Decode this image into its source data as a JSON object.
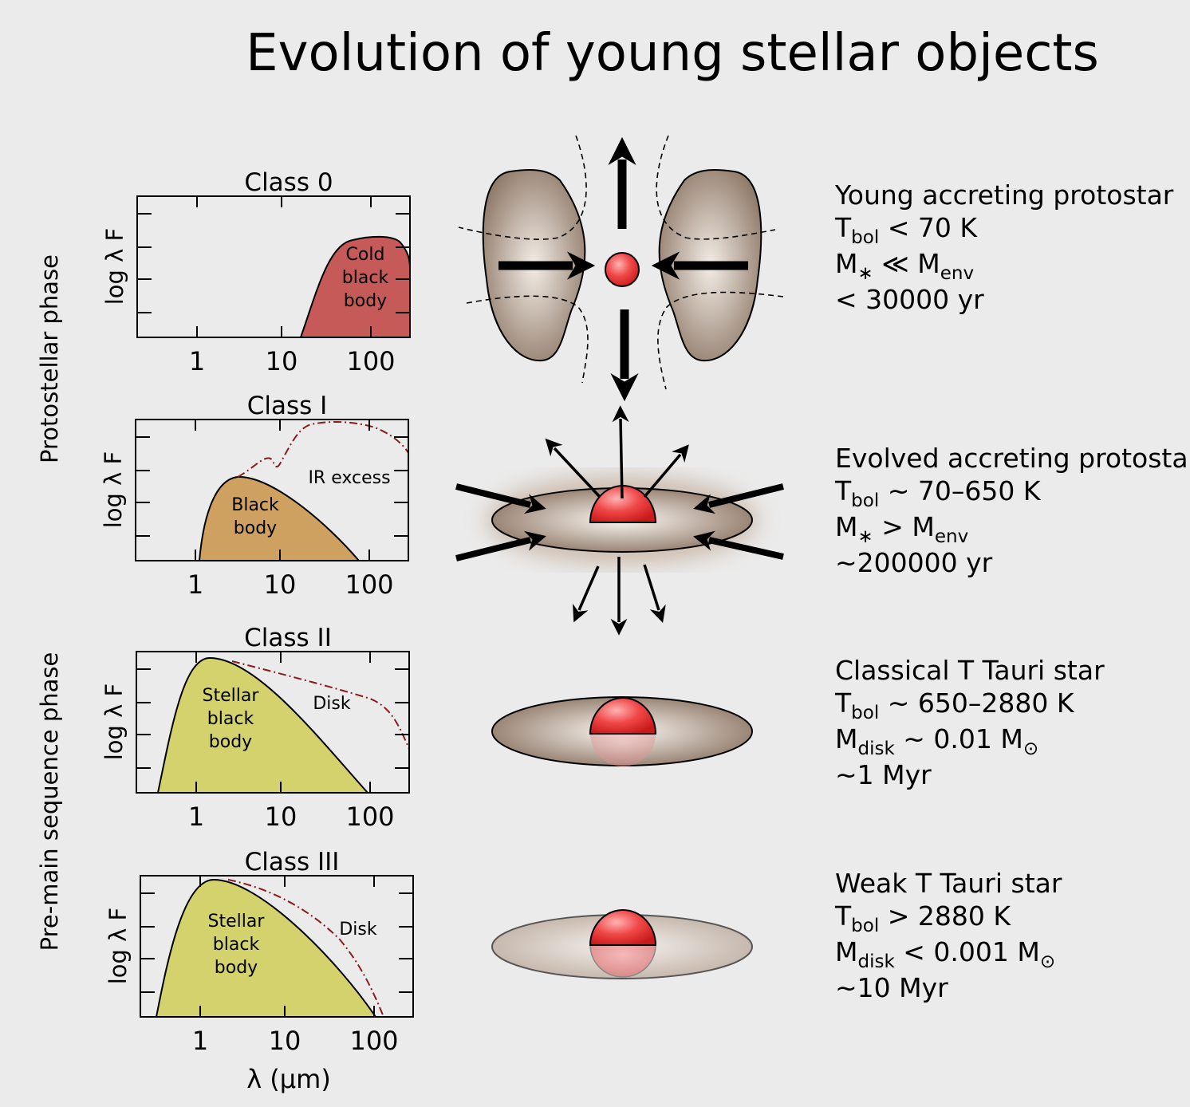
{
  "title": "Evolution of young stellar objects",
  "phases": [
    "Protostellar phase",
    "Pre-main sequence phase"
  ],
  "x_axis_label": "λ (µm)",
  "classes": [
    {
      "name": "Class 0",
      "y_axis_label": "log λ F",
      "x_tick_labels": [
        "1",
        "10",
        "100"
      ],
      "curve_labels": [
        {
          "lines": [
            "Cold",
            "black",
            "body"
          ]
        }
      ],
      "description": {
        "heading": "Young accreting protostar",
        "lines": [
          [
            "T",
            "bol",
            " < 70 K"
          ],
          [
            "M",
            "∗",
            " ≪ M",
            "env"
          ],
          [
            "< 30000 yr"
          ]
        ]
      }
    },
    {
      "name": "Class I",
      "y_axis_label": "log λ F",
      "x_tick_labels": [
        "1",
        "10",
        "100"
      ],
      "curve_labels": [
        {
          "lines": [
            "Black",
            "body"
          ]
        },
        {
          "lines": [
            "IR excess"
          ]
        }
      ],
      "description": {
        "heading": "Evolved accreting protostar",
        "lines": [
          [
            "T",
            "bol",
            " ∼ 70–650 K"
          ],
          [
            "M",
            "∗",
            " > M",
            "env"
          ],
          [
            "∼200000 yr"
          ]
        ]
      }
    },
    {
      "name": "Class II",
      "y_axis_label": "log λ F",
      "x_tick_labels": [
        "1",
        "10",
        "100"
      ],
      "curve_labels": [
        {
          "lines": [
            "Stellar",
            "black",
            "body"
          ]
        },
        {
          "lines": [
            "Disk"
          ]
        }
      ],
      "description": {
        "heading": "Classical T Tauri star",
        "lines": [
          [
            "T",
            "bol",
            " ∼ 650–2880 K"
          ],
          [
            "M",
            "disk",
            " ∼ 0.01 M",
            "⊙"
          ],
          [
            "∼1 Myr"
          ]
        ]
      }
    },
    {
      "name": "Class III",
      "y_axis_label": "log λ F",
      "x_tick_labels": [
        "1",
        "10",
        "100"
      ],
      "curve_labels": [
        {
          "lines": [
            "Stellar",
            "black",
            "body"
          ]
        },
        {
          "lines": [
            "Disk"
          ]
        }
      ],
      "description": {
        "heading": "Weak T Tauri star",
        "lines": [
          [
            "T",
            "bol",
            " > 2880 K"
          ],
          [
            "M",
            "disk",
            " < 0.001 M",
            "⊙"
          ],
          [
            "∼10 Myr"
          ]
        ]
      }
    }
  ]
}
